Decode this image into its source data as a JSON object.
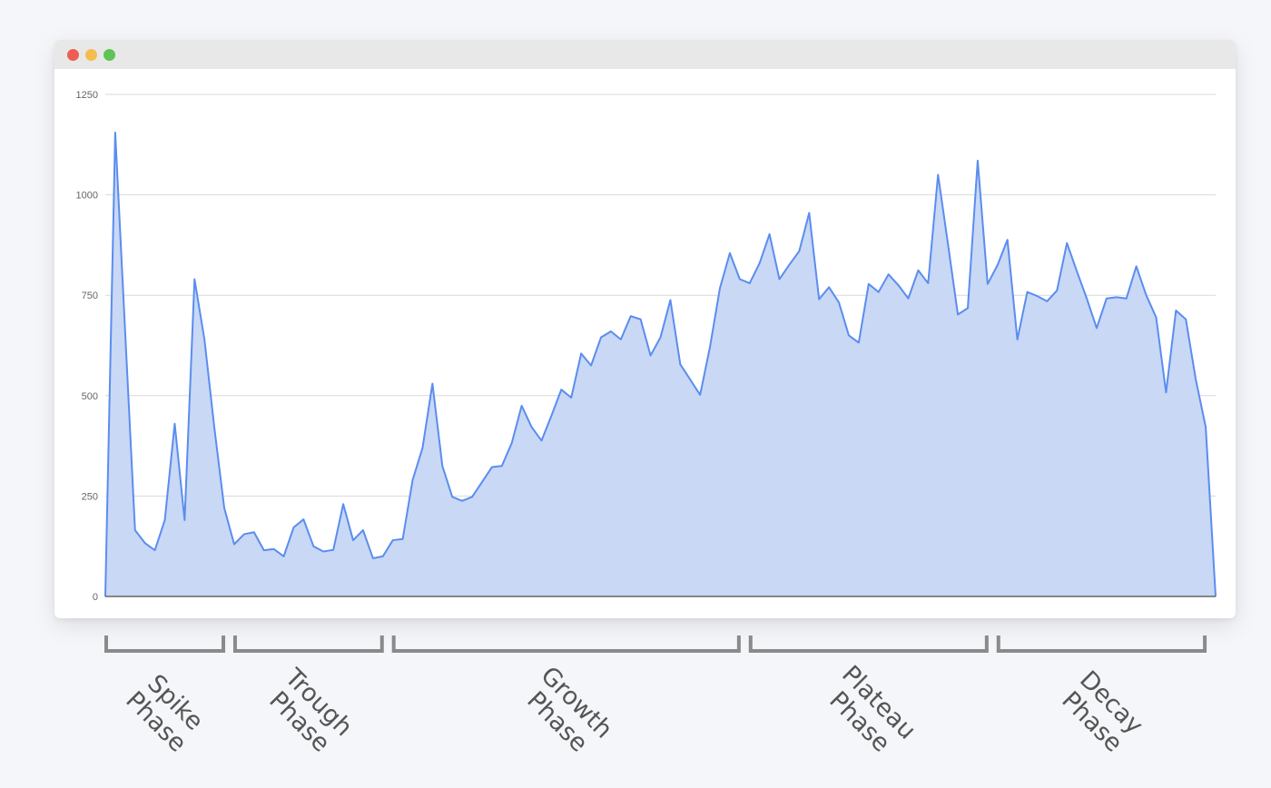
{
  "window": {
    "controls": [
      "close",
      "minimize",
      "maximize"
    ]
  },
  "colors": {
    "line": "#5b8def",
    "fill": "#c8d8f5",
    "grid": "#d9d9d9",
    "axis": "#666666",
    "bracket": "#8a8a8a",
    "phase_text": "#555555",
    "close": "#ee5d53",
    "minimize": "#f5bd4f",
    "maximize": "#5ec454"
  },
  "chart_data": {
    "type": "area",
    "title": "",
    "xlabel": "",
    "ylabel": "",
    "ylim": [
      0,
      1250
    ],
    "yticks": [
      0,
      250,
      500,
      750,
      1000,
      1250
    ],
    "ytick_labels": [
      "0",
      "250",
      "500",
      "750",
      "1000",
      "1250"
    ],
    "grid": true,
    "legend": "none",
    "x": [
      0,
      1,
      2,
      3,
      4,
      5,
      6,
      7,
      8,
      9,
      10,
      11,
      12,
      13,
      14,
      15,
      16,
      17,
      18,
      19,
      20,
      21,
      22,
      23,
      24,
      25,
      26,
      27,
      28,
      29,
      30,
      31,
      32,
      33,
      34,
      35,
      36,
      37,
      38,
      39,
      40,
      41,
      42,
      43,
      44,
      45,
      46,
      47,
      48,
      49,
      50,
      51,
      52,
      53,
      54,
      55,
      56,
      57,
      58,
      59,
      60,
      61,
      62,
      63,
      64,
      65,
      66,
      67,
      68,
      69,
      70,
      71,
      72,
      73,
      74,
      75,
      76,
      77,
      78,
      79,
      80,
      81,
      82,
      83,
      84,
      85,
      86,
      87,
      88,
      89,
      90,
      91,
      92,
      93,
      94,
      95,
      96,
      97,
      98,
      99,
      100,
      101,
      102,
      103,
      104,
      105,
      106,
      107,
      108,
      109,
      110,
      111,
      112
    ],
    "values": [
      0,
      1155,
      660,
      165,
      133,
      115,
      190,
      430,
      190,
      790,
      640,
      420,
      220,
      130,
      155,
      160,
      115,
      118,
      100,
      172,
      192,
      125,
      112,
      116,
      230,
      140,
      165,
      95,
      100,
      140,
      143,
      290,
      370,
      530,
      325,
      248,
      238,
      248,
      285,
      322,
      325,
      382,
      475,
      422,
      388,
      450,
      515,
      495,
      605,
      575,
      645,
      660,
      640,
      698,
      690,
      600,
      645,
      738,
      578,
      540,
      502,
      622,
      768,
      855,
      790,
      780,
      830,
      902,
      790,
      826,
      860,
      955,
      740,
      770,
      732,
      650,
      632,
      778,
      758,
      802,
      775,
      742,
      812,
      780,
      1050,
      878,
      702,
      718,
      1085,
      778,
      825,
      888,
      640,
      758,
      748,
      735,
      762,
      880,
      810,
      742,
      668,
      742,
      745,
      742,
      822,
      750,
      695,
      508,
      712,
      690,
      540,
      422,
      0
    ]
  },
  "phases": [
    {
      "id": "spike",
      "line1": "Spike",
      "line2": "Phase",
      "start": 0,
      "end": 12
    },
    {
      "id": "trough",
      "line1": "Trough",
      "line2": "Phase",
      "start": 13,
      "end": 28
    },
    {
      "id": "growth",
      "line1": "Growth",
      "line2": "Phase",
      "start": 29,
      "end": 64
    },
    {
      "id": "plateau",
      "line1": "Plateau",
      "line2": "Phase",
      "start": 65,
      "end": 89
    },
    {
      "id": "decay",
      "line1": "Decay",
      "line2": "Phase",
      "start": 90,
      "end": 111
    }
  ]
}
